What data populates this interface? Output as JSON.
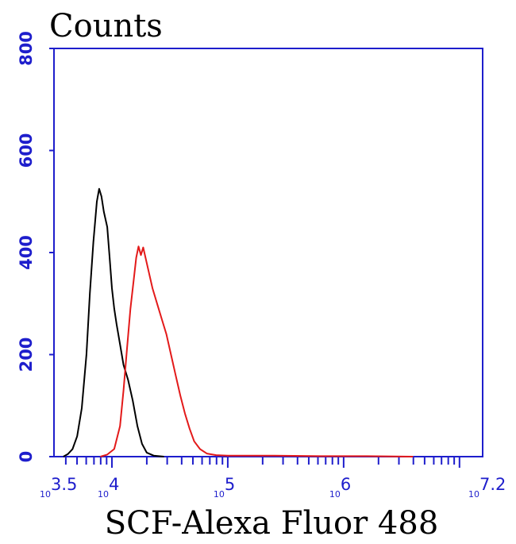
{
  "chart_data": {
    "type": "line",
    "title": "",
    "ylabel": "Counts",
    "xlabel": "SCF-Alexa Fluor 488",
    "xscale": "log10",
    "xlim": [
      3.5,
      7.2
    ],
    "ylim": [
      0,
      800
    ],
    "yticks": [
      "0",
      "200",
      "400",
      "600",
      "800"
    ],
    "xticks": [
      {
        "exp": 3.5,
        "base": "10",
        "label": "3.5"
      },
      {
        "exp": 4,
        "base": "10",
        "label": "4"
      },
      {
        "exp": 5,
        "base": "10",
        "label": "5"
      },
      {
        "exp": 6,
        "base": "10",
        "label": "6"
      },
      {
        "exp": 7.2,
        "base": "10",
        "label": "7.2"
      }
    ],
    "grid": false,
    "legend": "none",
    "axis_color": "#1e1ecc",
    "series": [
      {
        "color": "#000000",
        "points": [
          [
            3.58,
            0
          ],
          [
            3.62,
            5
          ],
          [
            3.66,
            15
          ],
          [
            3.7,
            40
          ],
          [
            3.74,
            95
          ],
          [
            3.78,
            200
          ],
          [
            3.81,
            320
          ],
          [
            3.84,
            420
          ],
          [
            3.87,
            500
          ],
          [
            3.89,
            525
          ],
          [
            3.91,
            510
          ],
          [
            3.93,
            480
          ],
          [
            3.96,
            450
          ],
          [
            3.98,
            390
          ],
          [
            4.0,
            330
          ],
          [
            4.02,
            290
          ],
          [
            4.04,
            260
          ],
          [
            4.07,
            220
          ],
          [
            4.1,
            180
          ],
          [
            4.14,
            150
          ],
          [
            4.18,
            110
          ],
          [
            4.22,
            60
          ],
          [
            4.26,
            25
          ],
          [
            4.3,
            8
          ],
          [
            4.36,
            2
          ],
          [
            4.45,
            0
          ]
        ]
      },
      {
        "color": "#e31a1a",
        "points": [
          [
            3.9,
            0
          ],
          [
            3.96,
            4
          ],
          [
            4.02,
            15
          ],
          [
            4.07,
            60
          ],
          [
            4.1,
            130
          ],
          [
            4.13,
            210
          ],
          [
            4.16,
            290
          ],
          [
            4.19,
            350
          ],
          [
            4.21,
            390
          ],
          [
            4.23,
            412
          ],
          [
            4.25,
            395
          ],
          [
            4.27,
            410
          ],
          [
            4.29,
            390
          ],
          [
            4.32,
            360
          ],
          [
            4.35,
            330
          ],
          [
            4.39,
            300
          ],
          [
            4.43,
            270
          ],
          [
            4.47,
            240
          ],
          [
            4.51,
            200
          ],
          [
            4.55,
            160
          ],
          [
            4.59,
            120
          ],
          [
            4.63,
            85
          ],
          [
            4.67,
            55
          ],
          [
            4.71,
            30
          ],
          [
            4.76,
            15
          ],
          [
            4.82,
            6
          ],
          [
            4.9,
            3
          ],
          [
            5.0,
            2
          ],
          [
            5.4,
            2
          ],
          [
            5.8,
            1
          ],
          [
            6.2,
            1
          ],
          [
            6.6,
            0
          ]
        ]
      }
    ]
  }
}
